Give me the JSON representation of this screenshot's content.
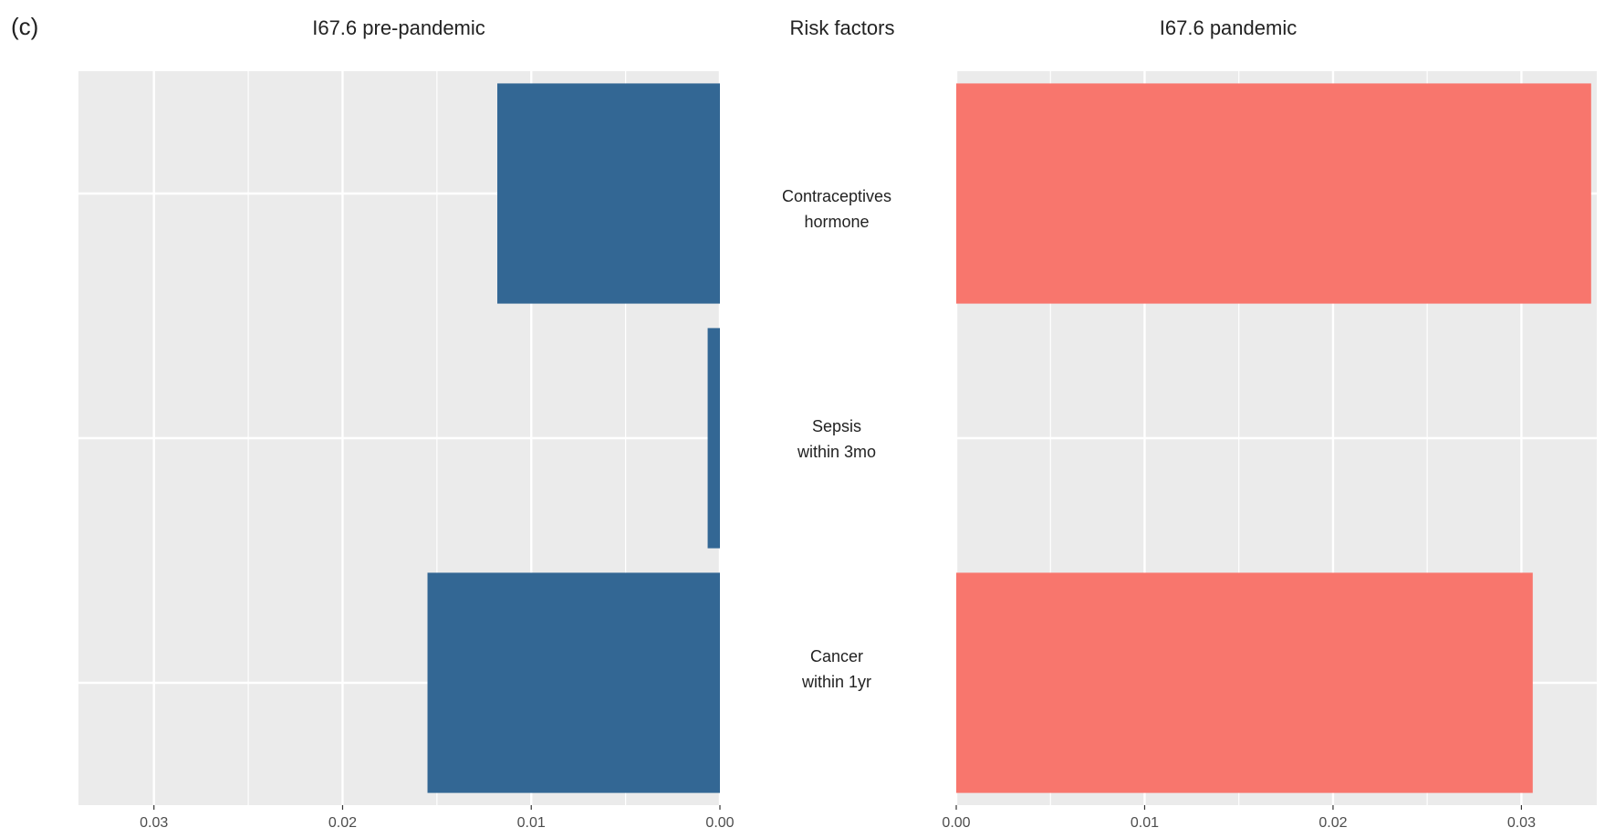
{
  "panel_label": "(c)",
  "chart_data": [
    {
      "type": "bar",
      "title": "I67.6 pre-pandemic",
      "orientation": "horizontal",
      "x_direction": "reversed",
      "categories": [
        "Contraceptives hormone",
        "Sepsis within 3mo",
        "Cancer within 1yr"
      ],
      "values": [
        0.0118,
        0.00065,
        0.0155
      ],
      "xlim": [
        0,
        0.034
      ],
      "xticks": [
        "0.03",
        "0.02",
        "0.01",
        "0.00"
      ],
      "tick_values": [
        0.03,
        0.02,
        0.01,
        0.0
      ],
      "color": "#336794",
      "grid": true
    },
    {
      "type": "bar",
      "title": "I67.6 pandemic",
      "orientation": "horizontal",
      "categories": [
        "Contraceptives hormone",
        "Sepsis within 3mo",
        "Cancer within 1yr"
      ],
      "values": [
        0.0337,
        0.0,
        0.0306
      ],
      "xlim": [
        0,
        0.034
      ],
      "xticks": [
        "0.00",
        "0.01",
        "0.02",
        "0.03"
      ],
      "tick_values": [
        0.0,
        0.01,
        0.02,
        0.03
      ],
      "color": "#f8766d",
      "grid": true
    }
  ],
  "center": {
    "title": "Risk  factors",
    "labels": [
      "Contraceptives\nhormone",
      "Sepsis\nwithin 3mo",
      "Cancer\nwithin 1yr"
    ]
  }
}
